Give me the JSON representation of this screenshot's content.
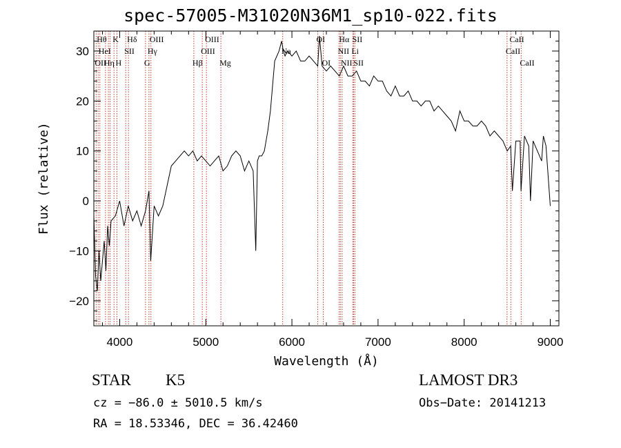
{
  "chart_data": {
    "type": "line",
    "title": "spec-57005-M31020N36M1_sp10-022.fits",
    "xlabel": "Wavelength (Å)",
    "ylabel": "Flux (relative)",
    "xlim": [
      3700,
      9100
    ],
    "ylim": [
      -25,
      34
    ],
    "xticks": [
      4000,
      5000,
      6000,
      7000,
      8000,
      9000
    ],
    "yticks": [
      -20,
      -10,
      0,
      10,
      20,
      30
    ],
    "x": [
      3700,
      3720,
      3740,
      3760,
      3780,
      3800,
      3820,
      3840,
      3860,
      3880,
      3900,
      3950,
      4000,
      4050,
      4100,
      4150,
      4200,
      4250,
      4300,
      4340,
      4360,
      4400,
      4450,
      4500,
      4550,
      4600,
      4650,
      4700,
      4750,
      4800,
      4850,
      4900,
      4950,
      5000,
      5050,
      5100,
      5150,
      5200,
      5250,
      5300,
      5350,
      5400,
      5450,
      5500,
      5550,
      5580,
      5600,
      5620,
      5650,
      5680,
      5700,
      5720,
      5750,
      5800,
      5850,
      5880,
      5900,
      5920,
      5950,
      6000,
      6050,
      6100,
      6150,
      6200,
      6250,
      6300,
      6320,
      6350,
      6400,
      6450,
      6500,
      6550,
      6600,
      6650,
      6700,
      6750,
      6800,
      6850,
      6900,
      6950,
      7000,
      7050,
      7100,
      7150,
      7200,
      7250,
      7300,
      7350,
      7400,
      7450,
      7500,
      7550,
      7600,
      7650,
      7700,
      7750,
      7800,
      7850,
      7900,
      7950,
      8000,
      8050,
      8100,
      8150,
      8200,
      8250,
      8300,
      8350,
      8400,
      8450,
      8500,
      8540,
      8560,
      8600,
      8650,
      8660,
      8700,
      8750,
      8770,
      8800,
      8850,
      8900,
      8920,
      8950,
      9000
    ],
    "y": [
      -3,
      -15,
      -18,
      -10,
      -16,
      -12,
      -8,
      -14,
      -5,
      -9,
      -4,
      -3,
      0,
      -5,
      -1,
      -4,
      -2,
      -5,
      -2,
      2,
      -12,
      -1,
      -3,
      -1,
      3,
      7,
      8,
      9,
      10,
      9,
      10,
      8,
      9,
      8,
      7,
      8,
      9,
      6,
      7,
      9,
      10,
      9,
      6,
      8,
      6,
      -10,
      8,
      9,
      9,
      10,
      12,
      14,
      18,
      28,
      30,
      32,
      30,
      29,
      30,
      29,
      30,
      28,
      28,
      29,
      28,
      27,
      33,
      27,
      26,
      27,
      26,
      25,
      27,
      25,
      25,
      26,
      24,
      24,
      23,
      25,
      24,
      24,
      22,
      21,
      23,
      21,
      21,
      22,
      20,
      20,
      19,
      20,
      20,
      18,
      19,
      18,
      17,
      16,
      14,
      18,
      16,
      16,
      15,
      15,
      16,
      15,
      13,
      14,
      13,
      12,
      10,
      11,
      2,
      12,
      12,
      2,
      13,
      11,
      0,
      12,
      10,
      8,
      13,
      11,
      -1
    ],
    "lines": [
      {
        "w": 3750,
        "row": 0,
        "label": "Hθ"
      },
      {
        "w": 3770,
        "row": 1,
        "label": "HeI"
      },
      {
        "w": 3727,
        "row": 2,
        "label": "OII"
      },
      {
        "w": 3835,
        "row": 2,
        "label": "Hη"
      },
      {
        "w": 3869,
        "row": 1,
        "label": ""
      },
      {
        "w": 3889,
        "row": 1,
        "label": ""
      },
      {
        "w": 3934,
        "row": 0,
        "label": "K"
      },
      {
        "w": 3968,
        "row": 2,
        "label": "H"
      },
      {
        "w": 4070,
        "row": 1,
        "label": "SII"
      },
      {
        "w": 4102,
        "row": 0,
        "label": "Hδ"
      },
      {
        "w": 4300,
        "row": 2,
        "label": "G"
      },
      {
        "w": 4340,
        "row": 1,
        "label": "Hγ"
      },
      {
        "w": 4363,
        "row": 0,
        "label": "OIII"
      },
      {
        "w": 4861,
        "row": 2,
        "label": "Hβ"
      },
      {
        "w": 4959,
        "row": 1,
        "label": "OIII"
      },
      {
        "w": 5007,
        "row": 0,
        "label": "OIII"
      },
      {
        "w": 5175,
        "row": 2,
        "label": "Mg"
      },
      {
        "w": 5893,
        "row": 1,
        "label": "Na"
      },
      {
        "w": 6300,
        "row": 0,
        "label": "OI"
      },
      {
        "w": 6364,
        "row": 2,
        "label": "OI"
      },
      {
        "w": 6548,
        "row": 1,
        "label": "NII"
      },
      {
        "w": 6563,
        "row": 0,
        "label": "Hα"
      },
      {
        "w": 6583,
        "row": 2,
        "label": "NII"
      },
      {
        "w": 6707,
        "row": 1,
        "label": "Li"
      },
      {
        "w": 6717,
        "row": 0,
        "label": "SII"
      },
      {
        "w": 6731,
        "row": 2,
        "label": "SII"
      },
      {
        "w": 8498,
        "row": 1,
        "label": "CaII"
      },
      {
        "w": 8542,
        "row": 0,
        "label": "CaII"
      },
      {
        "w": 8662,
        "row": 2,
        "label": "CaII"
      }
    ]
  },
  "info": {
    "class": "STAR",
    "subclass": "K5",
    "survey": "LAMOST DR3",
    "cz": "cz = −86.0 ± 5010.5 km/s",
    "obs_date": "Obs−Date: 20141213",
    "coords": "RA =  18.53346, DEC =  36.42460"
  }
}
